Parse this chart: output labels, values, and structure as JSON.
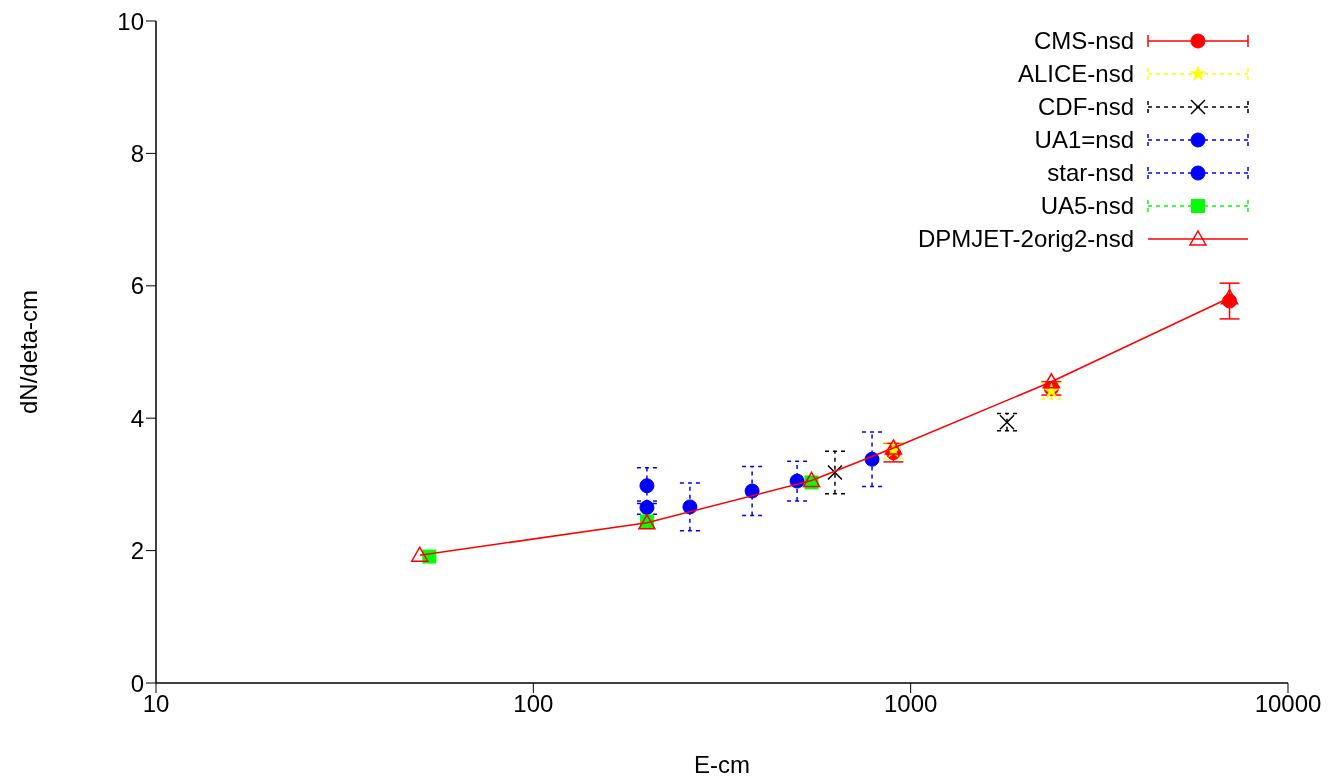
{
  "chart_data": {
    "type": "scatter",
    "xlabel": "E-cm",
    "ylabel": "dN/deta-cm",
    "log": "x",
    "xlim": [
      10,
      10000
    ],
    "xticks": [
      10,
      100,
      1000,
      10000
    ],
    "ylim": [
      0,
      10
    ],
    "yticks": [
      0,
      2,
      4,
      6,
      8,
      10
    ],
    "legend": "top right",
    "series": [
      {
        "name": "CMS-nsd",
        "color": "#ff0000",
        "marker": "circle",
        "line_style": "solid",
        "x": [
          900,
          2360,
          7000
        ],
        "values": [
          3.48,
          4.45,
          5.77
        ],
        "errors": [
          0.14,
          0.1,
          0.27
        ]
      },
      {
        "name": "ALICE-nsd",
        "color": "#ffff00",
        "marker": "star",
        "line_style": "dashed",
        "x": [
          900,
          2360
        ],
        "values": [
          3.51,
          4.41
        ],
        "errors": [
          0.12,
          0.12
        ]
      },
      {
        "name": "CDF-nsd",
        "color": "#000000",
        "marker": "cross",
        "line_style": "dashed",
        "x": [
          630,
          1800
        ],
        "values": [
          3.18,
          3.94
        ],
        "errors": [
          0.32,
          0.13
        ]
      },
      {
        "name": "UA1=nsd",
        "color": "#0000ff",
        "marker": "circle",
        "line_style": "dashed",
        "x": [
          200,
          260,
          380,
          500,
          790
        ],
        "values": [
          2.65,
          2.66,
          2.9,
          3.05,
          3.38
        ],
        "errors": [
          0.1,
          0.36,
          0.37,
          0.3,
          0.41
        ]
      },
      {
        "name": "star-nsd",
        "color": "#0000ff",
        "marker": "circle",
        "line_style": "dashed",
        "x": [
          200
        ],
        "values": [
          2.98
        ],
        "errors": [
          0.27
        ]
      },
      {
        "name": "UA5-nsd",
        "color": "#00ff00",
        "marker": "square",
        "line_style": "dashed",
        "x": [
          53,
          200,
          546
        ],
        "values": [
          1.91,
          2.44,
          3.03
        ]
      },
      {
        "name": "DPMJET-2orig2-nsd",
        "type": "line",
        "color": "#ff0000",
        "marker": "triangle",
        "line_style": "solid",
        "x": [
          50,
          200,
          546,
          900,
          2360,
          7000
        ],
        "values": [
          1.93,
          2.42,
          3.06,
          3.55,
          4.55,
          5.82
        ]
      }
    ]
  }
}
